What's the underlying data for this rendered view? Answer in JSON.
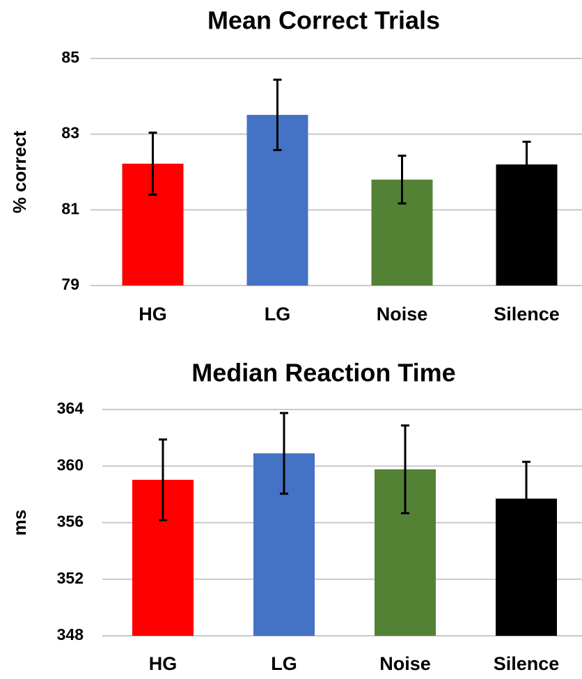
{
  "chart_data": [
    {
      "type": "bar",
      "title": "Mean Correct Trials",
      "y_label": "% correct",
      "categories": [
        "HG",
        "LG",
        "Noise",
        "Silence"
      ],
      "values": [
        82.22,
        83.51,
        81.8,
        82.2
      ],
      "errors": [
        0.82,
        0.93,
        0.63,
        0.6
      ],
      "colors": [
        "#ff0000",
        "#4472c4",
        "#548235",
        "#000000"
      ],
      "ylim": [
        79,
        85
      ],
      "yticks": [
        79,
        81,
        83,
        85
      ],
      "grid": true
    },
    {
      "type": "bar",
      "title": "Median Reaction Time",
      "y_label": "ms",
      "categories": [
        "HG",
        "LG",
        "Noise",
        "Silence"
      ],
      "values": [
        359.03,
        360.9,
        359.77,
        357.7
      ],
      "errors": [
        2.85,
        2.85,
        3.1,
        2.6
      ],
      "colors": [
        "#ff0000",
        "#4472c4",
        "#548235",
        "#000000"
      ],
      "ylim": [
        348,
        364
      ],
      "yticks": [
        348,
        352,
        356,
        360,
        364
      ],
      "grid": true
    }
  ]
}
